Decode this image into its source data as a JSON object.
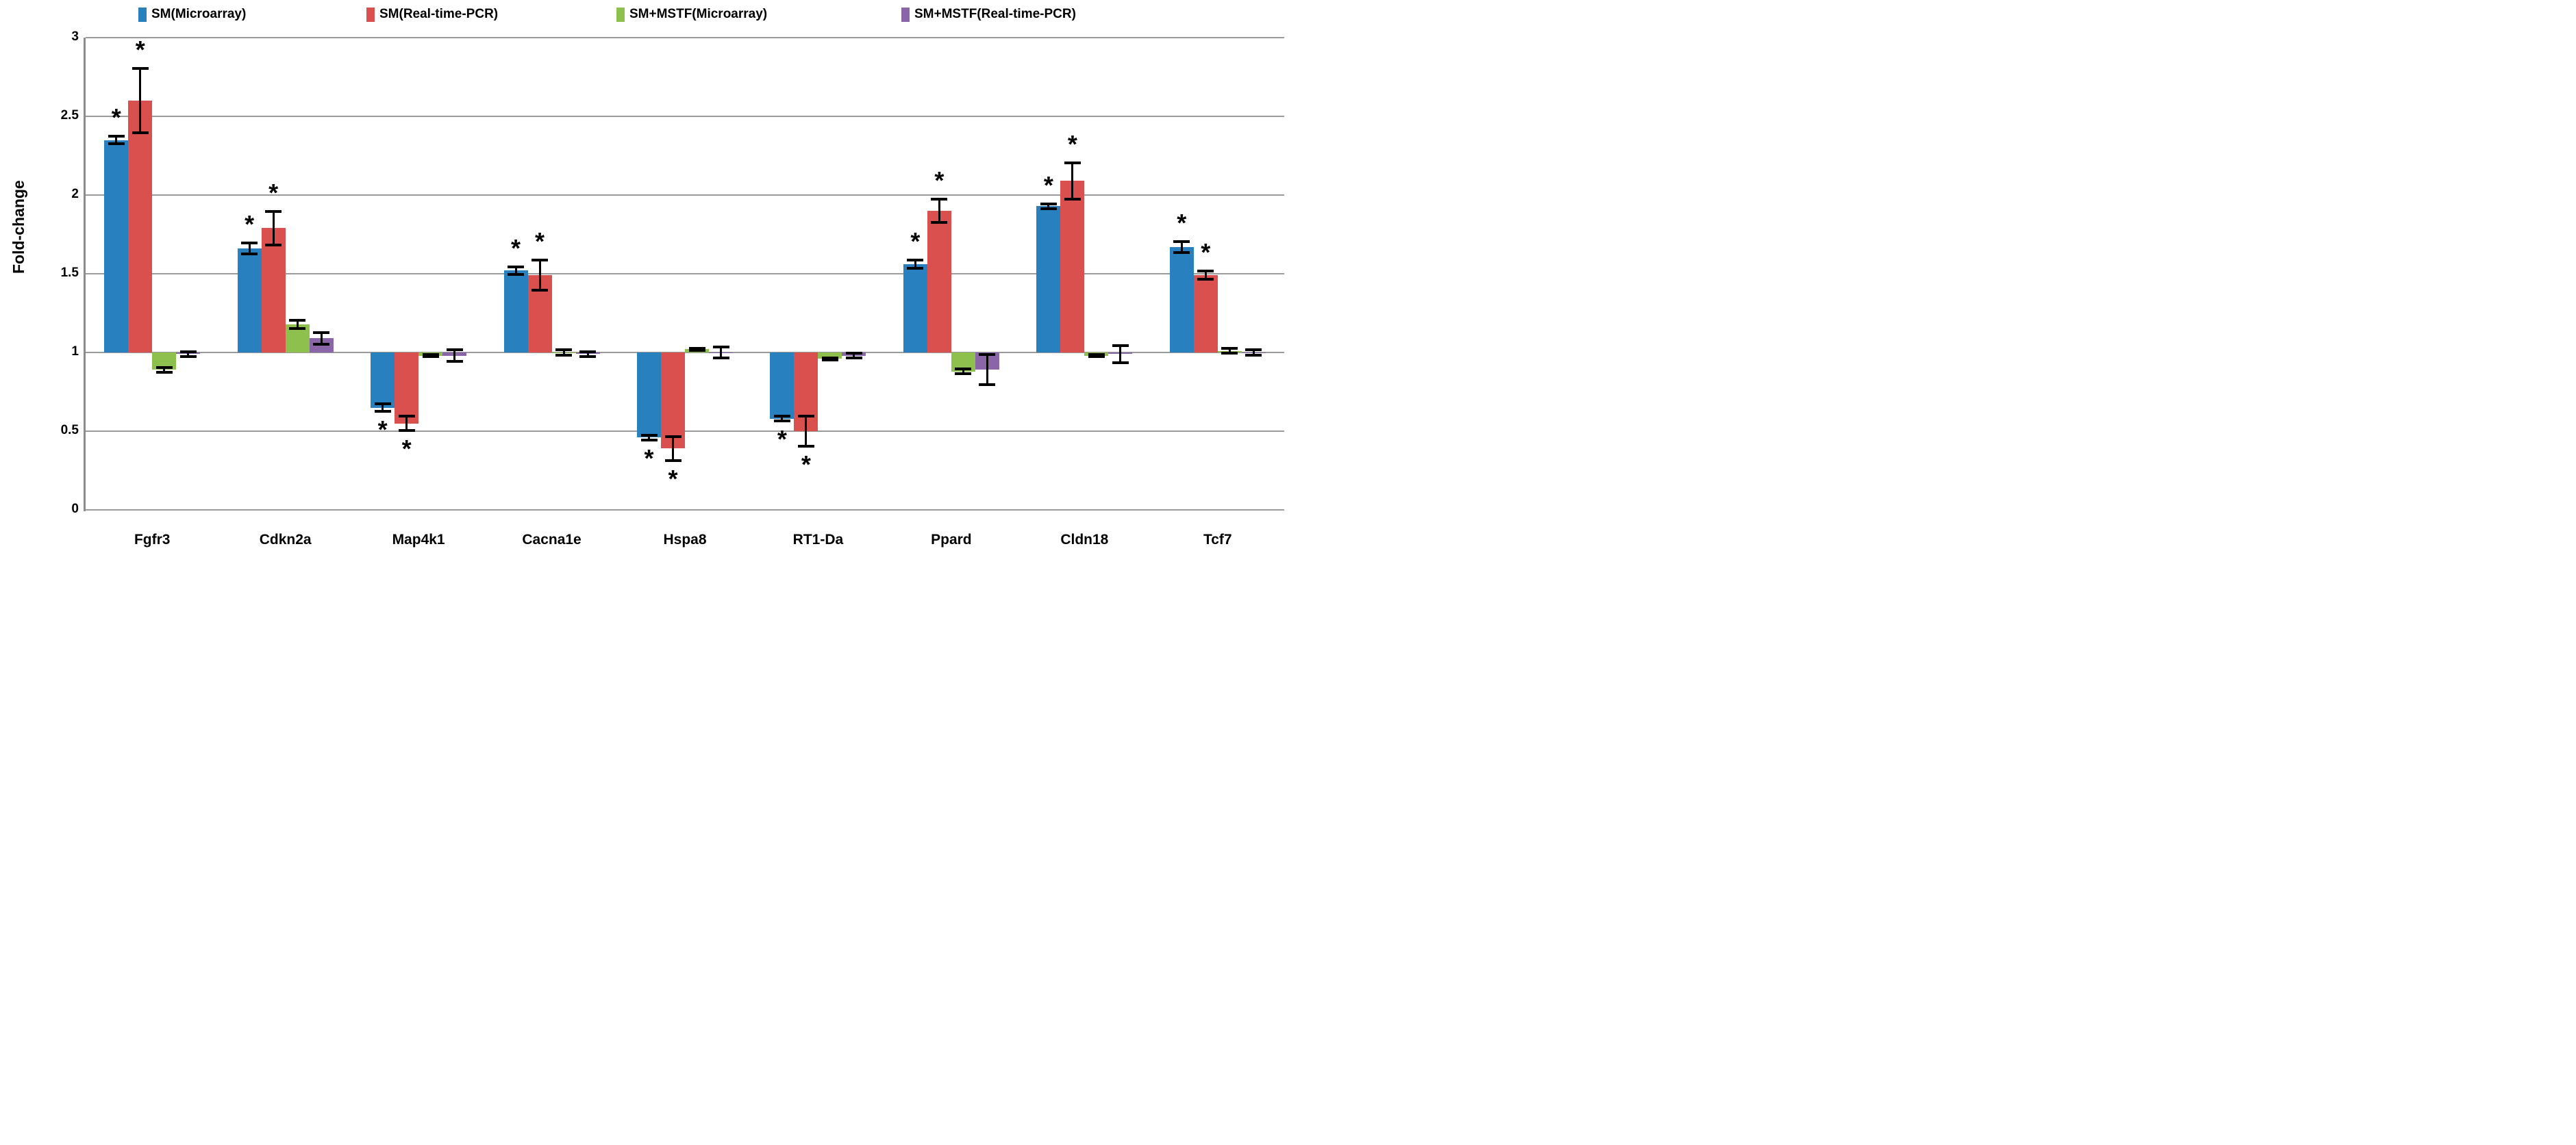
{
  "chart_data": {
    "type": "bar",
    "title": "",
    "ylabel": "Fold-change",
    "xlabel": "",
    "categories": [
      "Fgfr3",
      "Cdkn2a",
      "Map4k1",
      "Cacna1e",
      "Hspa8",
      "RT1-Da",
      "Ppard",
      "Cldn18",
      "Tcf7"
    ],
    "baseline": 1,
    "ylim": [
      0,
      3
    ],
    "yticks": [
      0,
      0.5,
      1,
      1.5,
      2,
      2.5,
      3
    ],
    "ytick_labels": [
      "0",
      "0.5",
      "1",
      "1.5",
      "2",
      "2.5",
      "3"
    ],
    "grid": "horizontal",
    "legend_position": "top",
    "error_bars": true,
    "significance_marker": "*",
    "series": [
      {
        "name": "SM(Microarray)",
        "color": "#2980BE",
        "values": [
          2.35,
          1.66,
          0.65,
          1.52,
          0.46,
          0.58,
          1.56,
          1.93,
          1.67
        ],
        "errors": [
          0.03,
          0.04,
          0.03,
          0.03,
          0.02,
          0.02,
          0.03,
          0.02,
          0.04
        ],
        "significant": [
          true,
          true,
          true,
          true,
          true,
          true,
          true,
          true,
          true
        ]
      },
      {
        "name": "SM(Real-time-PCR)",
        "color": "#D9504F",
        "values": [
          2.6,
          1.79,
          0.55,
          1.49,
          0.39,
          0.5,
          1.9,
          2.09,
          1.49
        ],
        "errors": [
          0.21,
          0.11,
          0.05,
          0.1,
          0.08,
          0.1,
          0.08,
          0.12,
          0.03
        ],
        "significant": [
          true,
          true,
          true,
          true,
          true,
          true,
          true,
          true,
          true
        ]
      },
      {
        "name": "SM+MSTF(Microarray)",
        "color": "#8EC04E",
        "values": [
          0.89,
          1.18,
          0.98,
          1.0,
          1.02,
          0.96,
          0.88,
          0.98,
          1.01
        ],
        "errors": [
          0.02,
          0.03,
          0.01,
          0.02,
          0.01,
          0.01,
          0.02,
          0.01,
          0.02
        ],
        "significant": [
          false,
          false,
          false,
          false,
          false,
          false,
          false,
          false,
          false
        ]
      },
      {
        "name": "SM+MSTF(Real-time-PCR)",
        "color": "#8A65A8",
        "values": [
          0.99,
          1.09,
          0.98,
          0.99,
          1.0,
          0.98,
          0.89,
          0.99,
          1.0
        ],
        "errors": [
          0.02,
          0.04,
          0.04,
          0.02,
          0.04,
          0.02,
          0.1,
          0.06,
          0.02
        ],
        "significant": [
          false,
          false,
          false,
          false,
          false,
          false,
          false,
          false,
          false
        ]
      }
    ]
  },
  "colors": {
    "gridline": "#9a9a9a",
    "axis": "#8c8c8c",
    "error_bar": "#000000",
    "text": "#000000",
    "background": "#ffffff"
  }
}
